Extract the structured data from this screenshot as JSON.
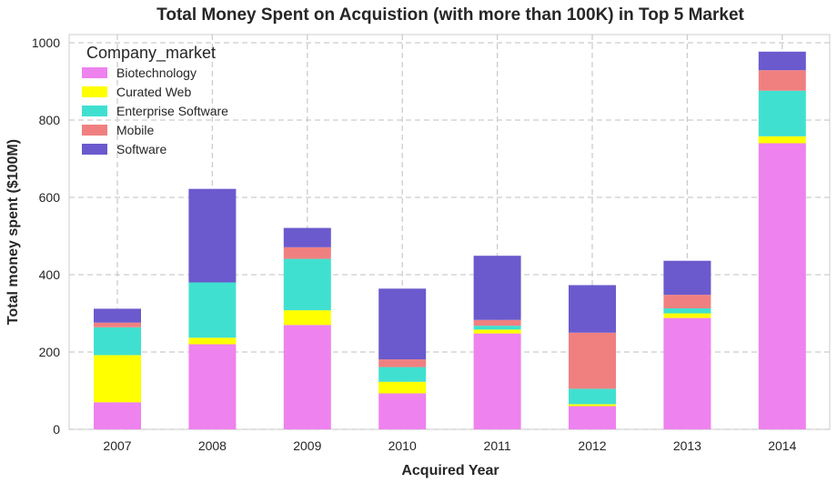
{
  "chart_data": {
    "type": "bar",
    "stacked": true,
    "title": "Total Money Spent on Acquistion (with more than 100K) in Top 5 Market",
    "xlabel": "Acquired Year",
    "ylabel": "Total money spent ($100M)",
    "categories": [
      "2007",
      "2008",
      "2009",
      "2010",
      "2011",
      "2012",
      "2013",
      "2014"
    ],
    "ylim": [
      0,
      1000
    ],
    "yticks": [
      0,
      200,
      400,
      600,
      800,
      1000
    ],
    "grid": true,
    "legend": {
      "title": "Company_market",
      "placement": "top-left"
    },
    "series": [
      {
        "name": "Biotechnology",
        "color": "#EE82EE",
        "values": [
          70,
          220,
          270,
          93,
          248,
          60,
          288,
          740
        ]
      },
      {
        "name": "Curated Web",
        "color": "#FFFF00",
        "values": [
          122,
          17,
          38,
          30,
          10,
          5,
          12,
          18
        ]
      },
      {
        "name": "Enterprise Software",
        "color": "#40E0D0",
        "values": [
          72,
          143,
          133,
          38,
          10,
          40,
          13,
          118
        ]
      },
      {
        "name": "Mobile",
        "color": "#F08080",
        "values": [
          12,
          0,
          30,
          20,
          15,
          145,
          35,
          53
        ]
      },
      {
        "name": "Software",
        "color": "#6A5ACD",
        "values": [
          36,
          242,
          50,
          183,
          166,
          123,
          88,
          48
        ]
      }
    ]
  }
}
